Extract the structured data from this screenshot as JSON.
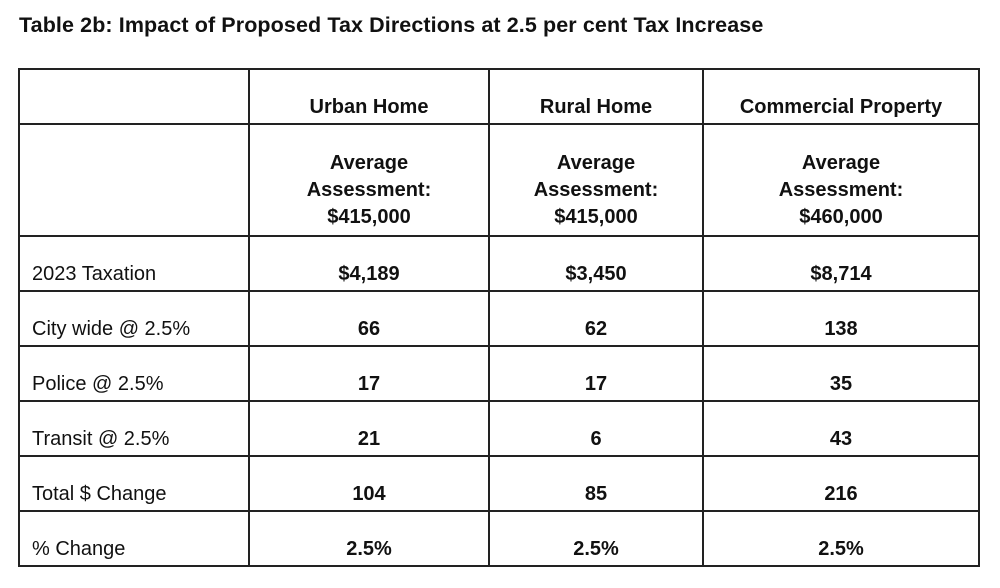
{
  "title": "Table 2b: Impact of Proposed Tax Directions at 2.5 per cent Tax Increase",
  "columns": [
    {
      "name": "Urban Home",
      "assessment_label": "Average",
      "assessment_label2": "Assessment:",
      "assessment_value": "$415,000"
    },
    {
      "name": "Rural Home",
      "assessment_label": "Average",
      "assessment_label2": "Assessment:",
      "assessment_value": "$415,000"
    },
    {
      "name": "Commercial Property",
      "assessment_label": "Average",
      "assessment_label2": "Assessment:",
      "assessment_value": "$460,000"
    }
  ],
  "rows": [
    {
      "label": "2023 Taxation",
      "values": [
        "$4,189",
        "$3,450",
        "$8,714"
      ]
    },
    {
      "label": "City wide @ 2.5%",
      "values": [
        "66",
        "62",
        "138"
      ]
    },
    {
      "label": "Police @ 2.5%",
      "values": [
        "17",
        "17",
        "35"
      ]
    },
    {
      "label": "Transit @ 2.5%",
      "values": [
        "21",
        "6",
        "43"
      ]
    },
    {
      "label": "Total $ Change",
      "values": [
        "104",
        "85",
        "216"
      ]
    },
    {
      "label": "% Change",
      "values": [
        "2.5%",
        "2.5%",
        "2.5%"
      ]
    }
  ]
}
